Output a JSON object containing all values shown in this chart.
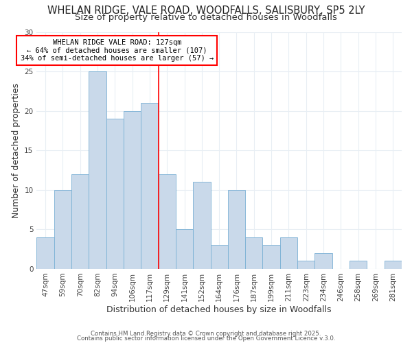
{
  "title": "WHELAN RIDGE, VALE ROAD, WOODFALLS, SALISBURY, SP5 2LY",
  "subtitle": "Size of property relative to detached houses in Woodfalls",
  "xlabel": "Distribution of detached houses by size in Woodfalls",
  "ylabel": "Number of detached properties",
  "categories": [
    "47sqm",
    "59sqm",
    "70sqm",
    "82sqm",
    "94sqm",
    "106sqm",
    "117sqm",
    "129sqm",
    "141sqm",
    "152sqm",
    "164sqm",
    "176sqm",
    "187sqm",
    "199sqm",
    "211sqm",
    "223sqm",
    "234sqm",
    "246sqm",
    "258sqm",
    "269sqm",
    "281sqm"
  ],
  "values": [
    4,
    10,
    12,
    25,
    19,
    20,
    21,
    12,
    5,
    11,
    3,
    10,
    4,
    3,
    4,
    1,
    2,
    0,
    1,
    0,
    1
  ],
  "bar_color": "#c9d9ea",
  "bar_edge_color": "#7ab0d4",
  "redline_index": 7,
  "redline_label": "WHELAN RIDGE VALE ROAD: 127sqm",
  "annotation_line1": "← 64% of detached houses are smaller (107)",
  "annotation_line2": "34% of semi-detached houses are larger (57) →",
  "ylim": [
    0,
    30
  ],
  "yticks": [
    0,
    5,
    10,
    15,
    20,
    25,
    30
  ],
  "background_color": "#ffffff",
  "plot_bg_color": "#ffffff",
  "grid_color": "#e8eef4",
  "footer1": "Contains HM Land Registry data © Crown copyright and database right 2025.",
  "footer2": "Contains public sector information licensed under the Open Government Licence v.3.0.",
  "title_fontsize": 10.5,
  "subtitle_fontsize": 9.5,
  "axis_label_fontsize": 9,
  "tick_fontsize": 7.5,
  "annotation_fontsize": 7.5
}
